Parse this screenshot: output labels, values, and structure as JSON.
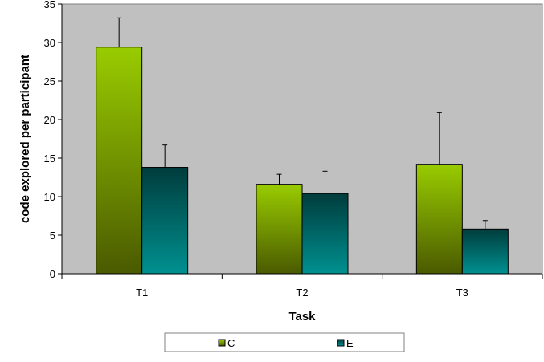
{
  "chart_data": {
    "type": "bar",
    "title": "",
    "xlabel": "Task",
    "ylabel": "code explored per participant",
    "categories": [
      "T1",
      "T2",
      "T3"
    ],
    "ylim": [
      0,
      35
    ],
    "yticks": [
      0,
      5,
      10,
      15,
      20,
      25,
      30,
      35
    ],
    "grid": false,
    "legend_position": "bottom",
    "series": [
      {
        "name": "C",
        "values": [
          29.4,
          11.6,
          14.2
        ],
        "error": [
          3.8,
          1.3,
          6.7
        ],
        "color_top": "#99cc00",
        "color_bottom": "#4a5a00"
      },
      {
        "name": "E",
        "values": [
          13.8,
          10.4,
          5.8
        ],
        "error": [
          2.9,
          2.9,
          1.1
        ],
        "color_top": "#003c3c",
        "color_bottom": "#009090"
      }
    ],
    "plot_background": "#c0c0c0"
  }
}
